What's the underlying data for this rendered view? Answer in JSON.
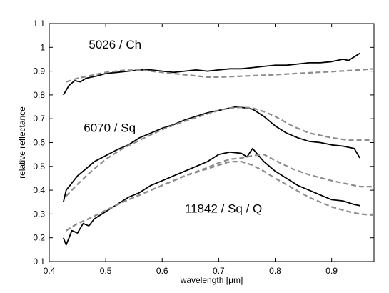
{
  "chart_data": {
    "type": "line",
    "xlabel": "wavelength [µm]",
    "ylabel": "relative reflectance",
    "xlim": [
      0.4,
      0.975
    ],
    "ylim": [
      0.1,
      1.1
    ],
    "xticks": [
      0.4,
      0.5,
      0.6,
      0.7,
      0.8,
      0.9
    ],
    "xtick_labels": [
      "0.4",
      "0.5",
      "0.6",
      "0.7",
      "0.8",
      "0.9"
    ],
    "yticks": [
      0.1,
      0.2,
      0.3,
      0.4,
      0.5,
      0.6,
      0.7,
      0.8,
      0.9,
      1.0,
      1.1
    ],
    "ytick_labels": [
      "0.1",
      "0.2",
      "0.3",
      "0.4",
      "0.5",
      "0.6",
      "0.7",
      "0.8",
      "0.9",
      "1",
      "1.1"
    ],
    "grid": false,
    "legend": "none",
    "colors": {
      "observed": "#000000",
      "model": "#8c8c8c"
    },
    "annotations": [
      {
        "text": "5026 / Ch",
        "x": 0.47,
        "y": 0.995
      },
      {
        "text": "6070 / Sq",
        "x": 0.461,
        "y": 0.645
      },
      {
        "text": "11842 / Sq / Q",
        "x": 0.64,
        "y": 0.305
      }
    ],
    "series": [
      {
        "style": "solid",
        "x": [
          0.425,
          0.435,
          0.445,
          0.455,
          0.465,
          0.475,
          0.485,
          0.5,
          0.52,
          0.54,
          0.56,
          0.58,
          0.6,
          0.62,
          0.64,
          0.66,
          0.68,
          0.7,
          0.72,
          0.74,
          0.76,
          0.78,
          0.8,
          0.82,
          0.84,
          0.86,
          0.88,
          0.9,
          0.92,
          0.93,
          0.94,
          0.95
        ],
        "y": [
          0.8,
          0.84,
          0.86,
          0.855,
          0.87,
          0.875,
          0.88,
          0.89,
          0.895,
          0.9,
          0.905,
          0.905,
          0.9,
          0.895,
          0.9,
          0.905,
          0.9,
          0.905,
          0.91,
          0.91,
          0.915,
          0.92,
          0.925,
          0.925,
          0.93,
          0.935,
          0.935,
          0.94,
          0.95,
          0.945,
          0.96,
          0.975
        ]
      },
      {
        "style": "dashed",
        "x": [
          0.43,
          0.45,
          0.47,
          0.5,
          0.53,
          0.56,
          0.6,
          0.64,
          0.68,
          0.7,
          0.72,
          0.75,
          0.8,
          0.85,
          0.9,
          0.95,
          0.975
        ],
        "y": [
          0.855,
          0.87,
          0.88,
          0.895,
          0.903,
          0.905,
          0.895,
          0.885,
          0.875,
          0.875,
          0.877,
          0.88,
          0.885,
          0.892,
          0.898,
          0.905,
          0.91
        ]
      },
      {
        "style": "solid",
        "x": [
          0.425,
          0.43,
          0.44,
          0.45,
          0.46,
          0.47,
          0.48,
          0.5,
          0.52,
          0.54,
          0.56,
          0.58,
          0.6,
          0.62,
          0.64,
          0.66,
          0.68,
          0.7,
          0.72,
          0.73,
          0.75,
          0.76,
          0.78,
          0.8,
          0.82,
          0.84,
          0.86,
          0.88,
          0.9,
          0.92,
          0.94,
          0.95
        ],
        "y": [
          0.35,
          0.4,
          0.43,
          0.46,
          0.48,
          0.5,
          0.52,
          0.545,
          0.57,
          0.59,
          0.62,
          0.64,
          0.66,
          0.675,
          0.695,
          0.71,
          0.725,
          0.735,
          0.745,
          0.75,
          0.745,
          0.74,
          0.71,
          0.67,
          0.64,
          0.62,
          0.605,
          0.6,
          0.59,
          0.585,
          0.575,
          0.535
        ]
      },
      {
        "style": "dashed",
        "x": [
          0.43,
          0.45,
          0.47,
          0.5,
          0.53,
          0.56,
          0.6,
          0.64,
          0.68,
          0.7,
          0.72,
          0.74,
          0.76,
          0.78,
          0.8,
          0.83,
          0.86,
          0.9,
          0.93,
          0.95,
          0.975
        ],
        "y": [
          0.375,
          0.425,
          0.47,
          0.53,
          0.575,
          0.61,
          0.655,
          0.69,
          0.72,
          0.735,
          0.745,
          0.748,
          0.745,
          0.73,
          0.71,
          0.67,
          0.64,
          0.62,
          0.61,
          0.61,
          0.612
        ]
      },
      {
        "style": "solid",
        "x": [
          0.425,
          0.43,
          0.44,
          0.45,
          0.46,
          0.47,
          0.48,
          0.5,
          0.52,
          0.54,
          0.56,
          0.58,
          0.6,
          0.62,
          0.64,
          0.66,
          0.68,
          0.7,
          0.72,
          0.74,
          0.75,
          0.76,
          0.78,
          0.8,
          0.82,
          0.84,
          0.86,
          0.88,
          0.9,
          0.92,
          0.94,
          0.95
        ],
        "y": [
          0.2,
          0.17,
          0.23,
          0.22,
          0.26,
          0.25,
          0.28,
          0.31,
          0.34,
          0.37,
          0.39,
          0.42,
          0.44,
          0.46,
          0.48,
          0.5,
          0.52,
          0.55,
          0.56,
          0.555,
          0.54,
          0.575,
          0.52,
          0.48,
          0.45,
          0.42,
          0.4,
          0.38,
          0.36,
          0.355,
          0.34,
          0.335
        ]
      },
      {
        "style": "dashed",
        "x": [
          0.43,
          0.45,
          0.47,
          0.5,
          0.53,
          0.56,
          0.6,
          0.64,
          0.68,
          0.7,
          0.72,
          0.74,
          0.76,
          0.78,
          0.8,
          0.83,
          0.86,
          0.9,
          0.93,
          0.95,
          0.975
        ],
        "y": [
          0.23,
          0.26,
          0.28,
          0.315,
          0.35,
          0.38,
          0.42,
          0.46,
          0.495,
          0.515,
          0.53,
          0.535,
          0.545,
          0.55,
          0.525,
          0.49,
          0.465,
          0.44,
          0.425,
          0.415,
          0.415
        ]
      },
      {
        "style": "dashed",
        "x": [
          0.43,
          0.45,
          0.47,
          0.5,
          0.53,
          0.56,
          0.6,
          0.64,
          0.68,
          0.7,
          0.72,
          0.74,
          0.76,
          0.78,
          0.8,
          0.83,
          0.86,
          0.9,
          0.93,
          0.95,
          0.975
        ],
        "y": [
          0.23,
          0.26,
          0.28,
          0.315,
          0.35,
          0.38,
          0.42,
          0.46,
          0.49,
          0.505,
          0.52,
          0.52,
          0.505,
          0.48,
          0.45,
          0.41,
          0.37,
          0.33,
          0.31,
          0.3,
          0.295
        ]
      }
    ]
  }
}
